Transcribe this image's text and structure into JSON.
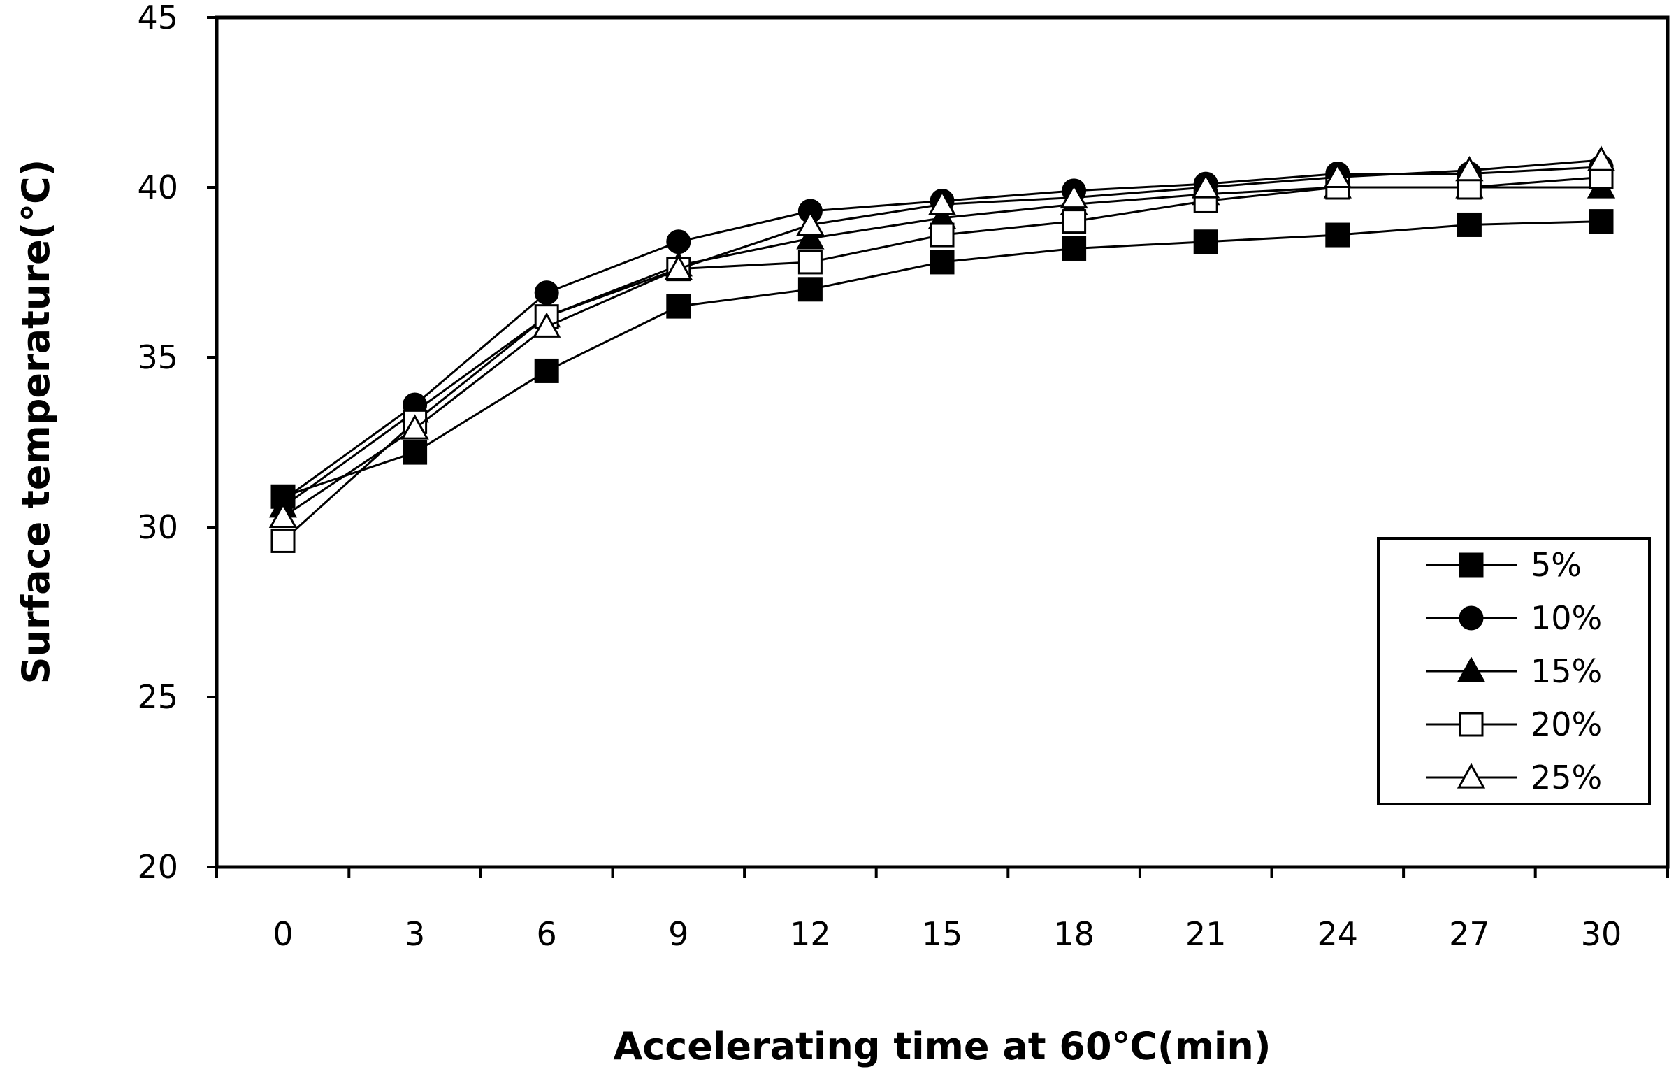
{
  "chart_data": {
    "type": "line",
    "title": "",
    "xlabel": "Accelerating time at 60℃(min)",
    "ylabel": "Surface temperature(℃)",
    "x": [
      0,
      3,
      6,
      9,
      12,
      15,
      18,
      21,
      24,
      27,
      30
    ],
    "x_tick_labels": [
      "0",
      "3",
      "6",
      "9",
      "12",
      "15",
      "18",
      "21",
      "24",
      "27",
      "30"
    ],
    "ylim": [
      20,
      45
    ],
    "y_ticks": [
      20,
      25,
      30,
      35,
      40,
      45
    ],
    "y_tick_labels": [
      "20",
      "25",
      "30",
      "35",
      "40",
      "45"
    ],
    "grid": false,
    "legend_position": "lower-right",
    "series": [
      {
        "name": "5%",
        "marker": "square-filled",
        "values": [
          30.9,
          32.2,
          34.6,
          36.5,
          37.0,
          37.8,
          38.2,
          38.4,
          38.6,
          38.9,
          39.0
        ]
      },
      {
        "name": "10%",
        "marker": "circle-filled",
        "values": [
          30.8,
          33.6,
          36.9,
          38.4,
          39.3,
          39.6,
          39.9,
          40.1,
          40.4,
          40.4,
          40.6
        ]
      },
      {
        "name": "15%",
        "marker": "triangle-filled",
        "values": [
          30.6,
          33.4,
          36.2,
          37.7,
          38.5,
          39.1,
          39.5,
          39.8,
          40.0,
          40.0,
          40.0
        ]
      },
      {
        "name": "20%",
        "marker": "square-open",
        "values": [
          29.6,
          33.1,
          36.2,
          37.6,
          37.8,
          38.6,
          39.0,
          39.6,
          40.0,
          40.0,
          40.3
        ]
      },
      {
        "name": "25%",
        "marker": "triangle-open",
        "values": [
          30.3,
          32.9,
          35.9,
          37.6,
          38.9,
          39.5,
          39.7,
          40.0,
          40.3,
          40.5,
          40.8
        ]
      }
    ]
  }
}
